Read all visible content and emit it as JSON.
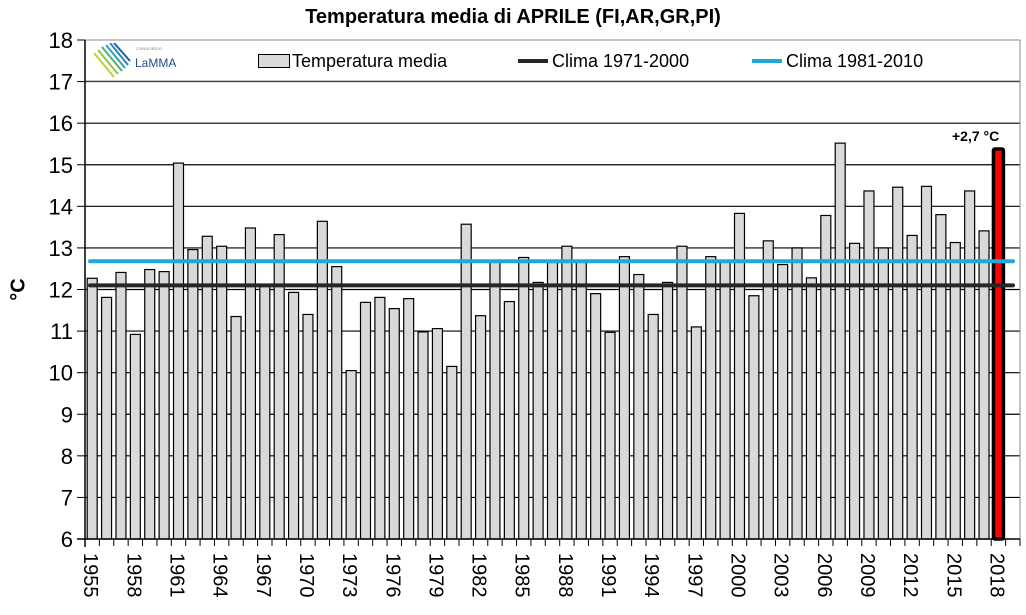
{
  "chart_data": {
    "type": "bar",
    "title": "Temperatura media di APRILE (FI,AR,GR,PI)",
    "xlabel": "",
    "ylabel": "°C",
    "ylim": [
      6,
      18
    ],
    "yticks": [
      "6",
      "7",
      "8",
      "9",
      "10",
      "11",
      "12",
      "13",
      "14",
      "15",
      "16",
      "17",
      "18"
    ],
    "xtick_labels": [
      "1955",
      "1958",
      "1961",
      "1964",
      "1967",
      "1970",
      "1973",
      "1976",
      "1979",
      "1982",
      "1985",
      "1988",
      "1991",
      "1994",
      "1997",
      "2000",
      "2003",
      "2006",
      "2009",
      "2012",
      "2015",
      "2018"
    ],
    "grid": "horizontal",
    "legend_position": "top",
    "categories": [
      "1955",
      "1956",
      "1957",
      "1958",
      "1959",
      "1960",
      "1961",
      "1962",
      "1963",
      "1964",
      "1965",
      "1966",
      "1967",
      "1968",
      "1969",
      "1970",
      "1971",
      "1972",
      "1973",
      "1974",
      "1975",
      "1976",
      "1977",
      "1978",
      "1979",
      "1980",
      "1981",
      "1982",
      "1983",
      "1984",
      "1985",
      "1986",
      "1987",
      "1988",
      "1989",
      "1990",
      "1991",
      "1992",
      "1993",
      "1994",
      "1995",
      "1996",
      "1997",
      "1998",
      "1999",
      "2000",
      "2001",
      "2002",
      "2003",
      "2004",
      "2005",
      "2006",
      "2007",
      "2008",
      "2009",
      "2010",
      "2011",
      "2012",
      "2013",
      "2014",
      "2015",
      "2016",
      "2017",
      "2018"
    ],
    "series": [
      {
        "name": "Temperatura media",
        "type": "bar",
        "color": "#d9d9d9",
        "values": [
          12.27,
          11.81,
          12.41,
          10.92,
          12.48,
          12.43,
          15.04,
          12.96,
          13.28,
          13.04,
          11.35,
          13.48,
          12.1,
          13.32,
          11.93,
          11.4,
          13.64,
          12.55,
          10.05,
          11.69,
          11.81,
          11.54,
          11.78,
          10.98,
          11.06,
          10.15,
          13.57,
          11.37,
          12.7,
          11.71,
          12.77,
          12.17,
          12.65,
          13.04,
          12.68,
          11.9,
          10.97,
          12.79,
          12.36,
          11.4,
          12.17,
          13.04,
          11.1,
          12.79,
          12.7,
          13.83,
          11.85,
          13.17,
          12.6,
          13.0,
          12.28,
          13.78,
          15.52,
          13.11,
          14.37,
          13.0,
          14.46,
          13.3,
          14.48,
          13.8,
          13.13,
          14.37,
          13.41,
          15.38
        ]
      },
      {
        "name": "Clima 1971-2000",
        "type": "line",
        "color": "#262626",
        "value": 12.1
      },
      {
        "name": "Clima 1981-2010",
        "type": "line",
        "color": "#1fa8d9",
        "value": 12.68
      }
    ],
    "highlight": {
      "category": "2018",
      "color": "#ff0000",
      "label": "+2,7 °C"
    }
  },
  "logo": {
    "small_text": "CONSORZIO",
    "name": "LaMMA"
  }
}
